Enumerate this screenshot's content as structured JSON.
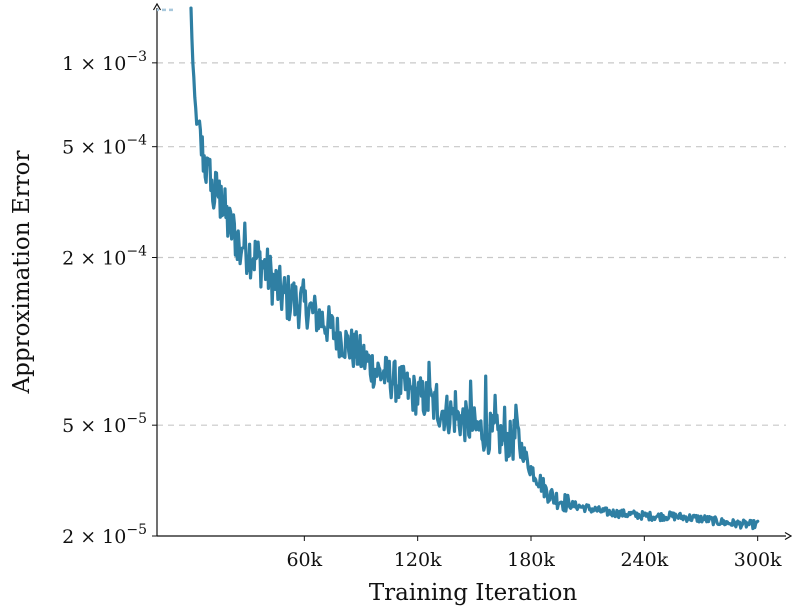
{
  "chart_data": {
    "type": "line",
    "title": "",
    "xlabel": "Training Iteration",
    "ylabel": "Approximation Error",
    "xscale": "linear",
    "yscale": "log",
    "xlim": [
      -18000,
      315000
    ],
    "ylim": [
      2e-05,
      0.0016
    ],
    "grid": {
      "y": true,
      "x": false,
      "style": "dashed"
    },
    "legend": "none",
    "x_ticks": [
      {
        "value": 60000,
        "label": "60k"
      },
      {
        "value": 120000,
        "label": "120k"
      },
      {
        "value": 180000,
        "label": "180k"
      },
      {
        "value": 240000,
        "label": "240k"
      },
      {
        "value": 300000,
        "label": "300k"
      }
    ],
    "y_ticks": [
      {
        "value": 0.001,
        "mant": "1",
        "exp": "−3"
      },
      {
        "value": 0.0005,
        "mant": "5",
        "exp": "−4"
      },
      {
        "value": 0.0002,
        "mant": "2",
        "exp": "−4"
      },
      {
        "value": 5e-05,
        "mant": "5",
        "exp": "−5"
      },
      {
        "value": 2e-05,
        "mant": "2",
        "exp": "−5"
      }
    ],
    "times_sign": "×",
    "tick_base": "10",
    "series": [
      {
        "color": "#2f7fa3",
        "x": [
          0,
          500,
          1000,
          1500,
          2000,
          3000,
          4000,
          5000,
          6000,
          8000,
          10000,
          12000,
          14000,
          16000,
          18000,
          20000,
          22000,
          25000,
          28000,
          30000,
          33000,
          36000,
          40000,
          44000,
          48000,
          52000,
          56000,
          60000,
          64000,
          68000,
          72000,
          76000,
          80000,
          84000,
          88000,
          92000,
          96000,
          100000,
          104000,
          108000,
          112000,
          116000,
          120000,
          122000,
          124000,
          126000,
          128000,
          130000,
          132000,
          134000,
          136000,
          138000,
          140000,
          142000,
          144000,
          146000,
          148000,
          150000,
          152000,
          154000,
          156000,
          158000,
          160000,
          162000,
          164000,
          166000,
          168000,
          170000,
          172000,
          174000,
          176000,
          178000,
          180000,
          184000,
          188000,
          192000,
          196000,
          200000,
          206000,
          212000,
          218000,
          224000,
          230000,
          236000,
          242000,
          248000,
          254000,
          260000,
          266000,
          272000,
          278000,
          284000,
          290000,
          296000,
          300000
        ],
        "y": [
          0.00155,
          0.00125,
          0.00098,
          0.00085,
          0.00074,
          0.00062,
          0.00056,
          0.00052,
          0.00048,
          0.00042,
          0.00036,
          0.00033,
          0.00035,
          0.00031,
          0.00029,
          0.00026,
          0.00025,
          0.00023,
          0.000225,
          0.00021,
          0.000205,
          0.000195,
          0.00018,
          0.000162,
          0.000148,
          0.000142,
          0.000138,
          0.000135,
          0.000128,
          0.000122,
          0.000115,
          0.000108,
          0.000102,
          9.6e-05,
          9.1e-05,
          8.6e-05,
          8.1e-05,
          7.7e-05,
          7.5e-05,
          7.2e-05,
          6.9e-05,
          6.6e-05,
          6.4e-05,
          6.3e-05,
          6.2e-05,
          6.1e-05,
          5.9e-05,
          5.8e-05,
          5.7e-05,
          5.6e-05,
          5.5e-05,
          5.5e-05,
          5.4e-05,
          5.3e-05,
          5.2e-05,
          5.1e-05,
          5e-05,
          4.9e-05,
          4.8e-05,
          4.8e-05,
          4.7e-05,
          4.7e-05,
          4.6e-05,
          4.6e-05,
          4.5e-05,
          4.4e-05,
          4.4e-05,
          4.3e-05,
          4.7e-05,
          4.3e-05,
          4e-05,
          3.7e-05,
          3.5e-05,
          3.2e-05,
          2.9e-05,
          2.75e-05,
          2.68e-05,
          2.6e-05,
          2.55e-05,
          2.5e-05,
          2.45e-05,
          2.42e-05,
          2.4e-05,
          2.38e-05,
          2.36e-05,
          2.35e-05,
          2.36e-05,
          2.34e-05,
          2.32e-05,
          2.3e-05,
          2.26e-05,
          2.23e-05,
          2.21e-05,
          2.2e-05,
          2.2e-05
        ],
        "spikes": [
          {
            "x": 10000,
            "y": 0.00045
          },
          {
            "x": 16000,
            "y": 0.00036
          },
          {
            "x": 26000,
            "y": 0.00019
          },
          {
            "x": 54000,
            "y": 0.000148
          },
          {
            "x": 126000,
            "y": 8.4e-05
          },
          {
            "x": 130000,
            "y": 7e-05
          },
          {
            "x": 140000,
            "y": 6.6e-05
          },
          {
            "x": 148000,
            "y": 7.2e-05
          },
          {
            "x": 156000,
            "y": 7.5e-05
          },
          {
            "x": 161000,
            "y": 6.4e-05
          },
          {
            "x": 166000,
            "y": 5.8e-05
          },
          {
            "x": 172000,
            "y": 5.9e-05
          }
        ]
      }
    ]
  }
}
